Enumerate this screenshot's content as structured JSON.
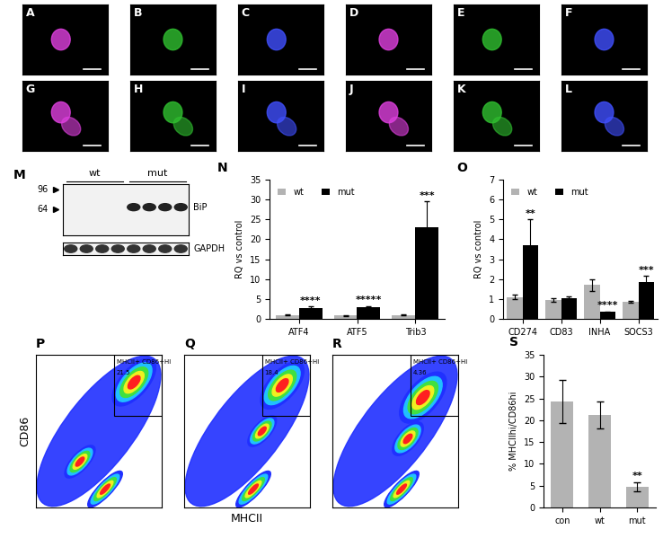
{
  "images": {
    "letters": [
      "A",
      "B",
      "C",
      "D",
      "E",
      "F",
      "G",
      "H",
      "I",
      "J",
      "K",
      "L"
    ]
  },
  "blot": {
    "panel": "M",
    "groups": [
      "wt",
      "mut"
    ],
    "markers": [
      96,
      64
    ],
    "bands": [
      "BiP",
      "GAPDH"
    ]
  },
  "flow": {
    "panels": [
      "P",
      "Q",
      "R"
    ],
    "xlabel": "MHCII",
    "ylabel": "CD86",
    "tick_labels": false,
    "gate_label": "MHCII+ CD86+HI",
    "gate_values": [
      21.5,
      18.4,
      4.36
    ]
  },
  "chart_data": [
    {
      "panel": "N",
      "type": "bar",
      "ylabel": "RQ vs control",
      "categories": [
        "ATF4",
        "ATF5",
        "Trib3"
      ],
      "series": [
        {
          "name": "wt",
          "color": "#b3b3b3",
          "values": [
            1.0,
            0.8,
            1.0
          ],
          "errors": [
            0.2,
            0.2,
            0.15
          ]
        },
        {
          "name": "mut",
          "color": "#000000",
          "values": [
            2.8,
            2.9,
            23.0
          ],
          "errors": [
            0.3,
            0.3,
            6.5
          ]
        }
      ],
      "significance": [
        "****",
        "*****",
        "***"
      ],
      "ylim": [
        0,
        35
      ],
      "yticks": [
        0,
        5,
        10,
        15,
        20,
        25,
        30,
        35
      ],
      "legend": "upper left"
    },
    {
      "panel": "O",
      "type": "bar",
      "ylabel": "RQ vs control",
      "categories": [
        "CD274",
        "CD83",
        "INHA",
        "SOCS3"
      ],
      "series": [
        {
          "name": "wt",
          "color": "#b3b3b3",
          "values": [
            1.1,
            0.95,
            1.7,
            0.85
          ],
          "errors": [
            0.1,
            0.1,
            0.3,
            0.05
          ]
        },
        {
          "name": "mut",
          "color": "#000000",
          "values": [
            3.7,
            1.05,
            0.35,
            1.85
          ],
          "errors": [
            1.3,
            0.1,
            0.03,
            0.3
          ]
        }
      ],
      "significance": [
        "**",
        null,
        "****",
        "***"
      ],
      "ylim": [
        0,
        7
      ],
      "yticks": [
        0,
        1,
        2,
        3,
        4,
        5,
        6,
        7
      ],
      "legend": "upper left"
    },
    {
      "panel": "S",
      "type": "bar",
      "ylabel": "% MHCIIhi/CD86hi",
      "categories": [
        "con",
        "wt",
        "mut"
      ],
      "color": "#b3b3b3",
      "values": [
        24.3,
        21.2,
        4.8
      ],
      "errors": [
        5.0,
        3.0,
        1.0
      ],
      "significance": [
        null,
        null,
        "**"
      ],
      "ylim": [
        0,
        35
      ],
      "yticks": [
        0,
        5,
        10,
        15,
        20,
        25,
        30,
        35
      ]
    }
  ]
}
